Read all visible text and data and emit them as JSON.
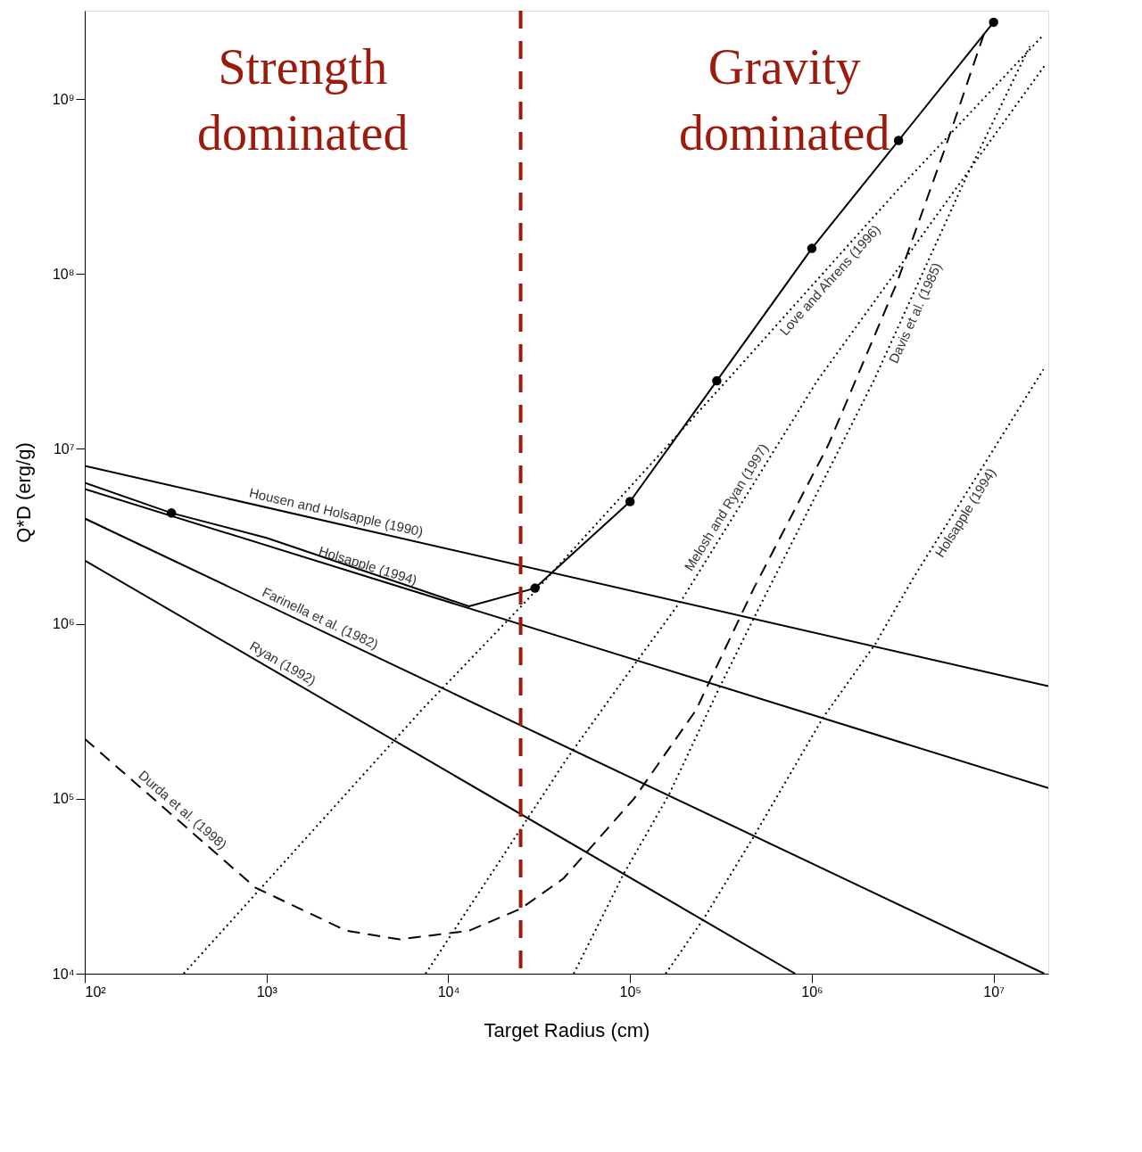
{
  "chart_data": {
    "type": "line",
    "xlabel": "Target Radius (cm)",
    "ylabel": "Q*D (erg/g)",
    "log": "xy",
    "grid": false,
    "xlim": [
      100,
      20000000
    ],
    "ylim": [
      10000,
      3200000000
    ],
    "xticks": [
      {
        "value": 100,
        "label": "10²"
      },
      {
        "value": 1000,
        "label": "10³"
      },
      {
        "value": 10000,
        "label": "10⁴"
      },
      {
        "value": 100000,
        "label": "10⁵"
      },
      {
        "value": 1000000,
        "label": "10⁶"
      },
      {
        "value": 10000000,
        "label": "10⁷"
      }
    ],
    "yticks": [
      {
        "value": 10000,
        "label": "10⁴"
      },
      {
        "value": 100000,
        "label": "10⁵"
      },
      {
        "value": 1000000,
        "label": "10⁶"
      },
      {
        "value": 10000000,
        "label": "10⁷"
      },
      {
        "value": 100000000,
        "label": "10⁸"
      },
      {
        "value": 1000000000,
        "label": "10⁹"
      }
    ],
    "ref_lines": [
      {
        "axis": "x",
        "value": 25000,
        "color": "#9b1c0c",
        "line_style": "dashed"
      }
    ],
    "annotations": [
      "Strength dominated",
      "Gravity dominated"
    ],
    "series": [
      {
        "name": "Housen and Holsapple (1990)",
        "line_style": "solid",
        "color": "#000000",
        "x": [
          100,
          20000000
        ],
        "values": [
          8000000,
          440000
        ]
      },
      {
        "name": "Holsapple (1994)",
        "line_style": "solid",
        "color": "#000000",
        "x": [
          100,
          20000000
        ],
        "values": [
          5900000,
          115000
        ]
      },
      {
        "name": "Farinella et al. (1982)",
        "line_style": "solid",
        "color": "#000000",
        "x": [
          100,
          19000000
        ],
        "values": [
          4000000,
          10000
        ]
      },
      {
        "name": "Ryan (1992)",
        "line_style": "solid",
        "color": "#000000",
        "x": [
          100,
          810000
        ],
        "values": [
          2300000,
          10000
        ]
      },
      {
        "name": "Durda et al. (1998)",
        "line_style": "dashed",
        "color": "#000000",
        "x": [
          100,
          870,
          2750,
          5400,
          13000,
          25000,
          43000,
          105000,
          230000,
          480000,
          1230000,
          2950000,
          5500000,
          8900000
        ],
        "values": [
          220000,
          31000,
          17600,
          15700,
          17600,
          23500,
          35000,
          100000,
          320000,
          1600000,
          10500000,
          90000000,
          550000000,
          2400000000
        ]
      },
      {
        "name": "Love and Ahrens (1996)",
        "line_style": "dotted",
        "color": "#000000",
        "x": [
          350,
          7300,
          27000,
          340000,
          2950000,
          18600000
        ],
        "values": [
          10000,
          330000,
          1360000,
          24500000,
          300000000,
          2300000000
        ]
      },
      {
        "name": "Melosh and Ryan (1997)",
        "line_style": "dotted",
        "color": "#000000",
        "x": [
          7500,
          45000,
          105000,
          195000,
          1070000,
          19500000
        ],
        "values": [
          10000,
          170000,
          580000,
          1400000,
          24500000,
          1600000000
        ]
      },
      {
        "name": "Davis et al. (1985)",
        "line_style": "dotted",
        "color": "#000000",
        "x": [
          49000,
          92000,
          164000,
          306000,
          476000,
          2190000,
          7000000,
          15800000
        ],
        "values": [
          10000,
          37000,
          106000,
          420000,
          1060000,
          24500000,
          350000000,
          2000000000
        ]
      },
      {
        "name": "Holsapple (1994)",
        "line_style": "dotted",
        "color": "#000000",
        "x": [
          157000,
          257000,
          480000,
          1150000,
          2240000,
          3630000,
          18800000
        ],
        "values": [
          10000,
          21000,
          61000,
          290000,
          770000,
          1840000,
          28500000
        ]
      },
      {
        "line_style": "solid",
        "color": "#000000",
        "x": [
          100,
          300,
          1000,
          10000,
          13000,
          30000,
          100000,
          300000,
          1000000,
          3000000,
          10000000
        ],
        "values": [
          6400000,
          4300000,
          3100000,
          1380000,
          1260000,
          1600000,
          5000000,
          24500000,
          140000000,
          580000000,
          2750000000
        ]
      },
      {
        "type": "scatter",
        "marker": "circle",
        "color": "#000000",
        "x": [
          300,
          30000,
          100000,
          300000,
          1000000,
          3000000,
          10000000
        ],
        "values": [
          4300000,
          1600000,
          5000000,
          24500000,
          140000000,
          580000000,
          2750000000
        ]
      }
    ]
  }
}
